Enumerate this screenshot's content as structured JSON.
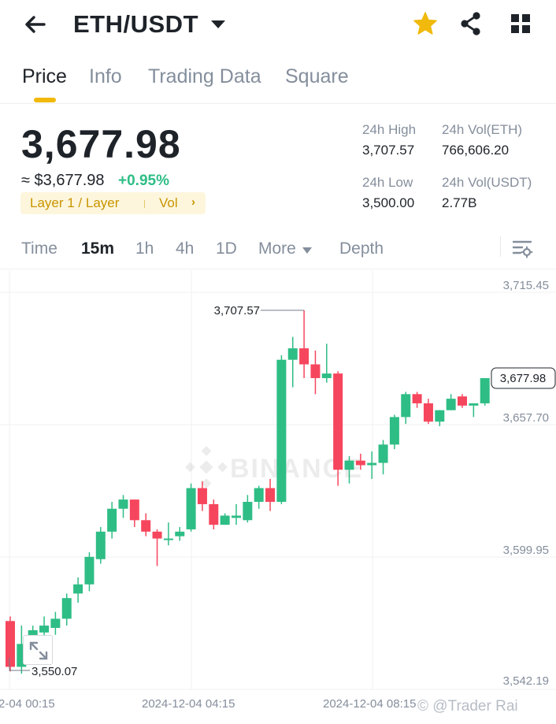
{
  "header": {
    "pair": "ETH/USDT",
    "icons": [
      "back-arrow-icon",
      "chevron-down-icon",
      "star-icon",
      "share-icon",
      "grid-icon"
    ],
    "star_color": "#f0b90b"
  },
  "tabs": [
    {
      "label": "Price",
      "active": true
    },
    {
      "label": "Info",
      "active": false
    },
    {
      "label": "Trading Data",
      "active": false
    },
    {
      "label": "Square",
      "active": false
    }
  ],
  "ticker": {
    "last_price": "3,677.98",
    "fiat_price": "≈ $3,677.98",
    "change_pct": "+0.95%",
    "tags": {
      "category": "Layer 1 / Layer",
      "vol": "Vol",
      "arrow": "›"
    },
    "high_label": "24h High",
    "high_value": "3,707.57",
    "low_label": "24h Low",
    "low_value": "3,500.00",
    "vol_eth_label": "24h Vol(ETH)",
    "vol_eth_value": "766,606.20",
    "vol_usdt_label": "24h Vol(USDT)",
    "vol_usdt_value": "2.77B"
  },
  "intervals": [
    {
      "label": "Time",
      "active": false
    },
    {
      "label": "15m",
      "active": true
    },
    {
      "label": "1h",
      "active": false
    },
    {
      "label": "4h",
      "active": false
    },
    {
      "label": "1D",
      "active": false
    },
    {
      "label": "More",
      "active": false
    },
    {
      "label": "Depth",
      "active": false
    }
  ],
  "chart": {
    "y_labels": [
      "3,715.45",
      "3,657.70",
      "3,599.95",
      "3,542.19"
    ],
    "x_labels": [
      "2-04 00:15",
      "2024-12-04 04:15",
      "2024-12-04 08:15"
    ],
    "high_marker": "3,707.57",
    "low_marker": "3,550.07",
    "last_price_label": "3,677.98",
    "watermark_logo": "BINANCE",
    "up_color": "#2ebd85",
    "down_color": "#f6465d"
  },
  "chart_data": {
    "type": "candlestick",
    "ylim": [
      3542.19,
      3715.45
    ],
    "candles": [
      {
        "o": 3572,
        "h": 3574,
        "c": 3552,
        "l": 3550
      },
      {
        "o": 3552,
        "h": 3570,
        "c": 3562,
        "l": 3549
      },
      {
        "o": 3562,
        "h": 3570,
        "c": 3568,
        "l": 3557
      },
      {
        "o": 3567,
        "h": 3574,
        "c": 3570,
        "l": 3564
      },
      {
        "o": 3569,
        "h": 3576,
        "c": 3573,
        "l": 3566
      },
      {
        "o": 3573,
        "h": 3584,
        "c": 3582,
        "l": 3570
      },
      {
        "o": 3584,
        "h": 3591,
        "c": 3588,
        "l": 3580
      },
      {
        "o": 3588,
        "h": 3602,
        "c": 3600,
        "l": 3585
      },
      {
        "o": 3599,
        "h": 3613,
        "c": 3611,
        "l": 3597
      },
      {
        "o": 3611,
        "h": 3624,
        "c": 3621,
        "l": 3608
      },
      {
        "o": 3621,
        "h": 3627,
        "c": 3625,
        "l": 3617
      },
      {
        "o": 3625,
        "h": 3625,
        "c": 3616,
        "l": 3613
      },
      {
        "o": 3616,
        "h": 3619,
        "c": 3611,
        "l": 3609
      },
      {
        "o": 3611,
        "h": 3612,
        "c": 3608,
        "l": 3596
      },
      {
        "o": 3608,
        "h": 3615,
        "c": 3608,
        "l": 3605
      },
      {
        "o": 3609,
        "h": 3613,
        "c": 3611,
        "l": 3607
      },
      {
        "o": 3612,
        "h": 3632,
        "c": 3630,
        "l": 3611
      },
      {
        "o": 3630,
        "h": 3633,
        "c": 3623,
        "l": 3620
      },
      {
        "o": 3623,
        "h": 3625,
        "c": 3614,
        "l": 3612
      },
      {
        "o": 3614,
        "h": 3619,
        "c": 3618,
        "l": 3614
      },
      {
        "o": 3617,
        "h": 3623,
        "c": 3618,
        "l": 3614
      },
      {
        "o": 3616,
        "h": 3627,
        "c": 3624,
        "l": 3615
      },
      {
        "o": 3624,
        "h": 3631,
        "c": 3630,
        "l": 3621
      },
      {
        "o": 3630,
        "h": 3634,
        "c": 3624,
        "l": 3620
      },
      {
        "o": 3624,
        "h": 3688,
        "c": 3686,
        "l": 3623
      },
      {
        "o": 3686,
        "h": 3696,
        "c": 3691,
        "l": 3674
      },
      {
        "o": 3691,
        "h": 3707.57,
        "c": 3684,
        "l": 3678
      },
      {
        "o": 3684,
        "h": 3690,
        "c": 3678,
        "l": 3671
      },
      {
        "o": 3678,
        "h": 3693,
        "c": 3680,
        "l": 3676
      },
      {
        "o": 3680,
        "h": 3681,
        "c": 3638,
        "l": 3631
      },
      {
        "o": 3638,
        "h": 3644,
        "c": 3642,
        "l": 3632
      },
      {
        "o": 3642,
        "h": 3645,
        "c": 3640,
        "l": 3638
      },
      {
        "o": 3640,
        "h": 3646,
        "c": 3641,
        "l": 3634
      },
      {
        "o": 3641,
        "h": 3651,
        "c": 3649,
        "l": 3636
      },
      {
        "o": 3649,
        "h": 3662,
        "c": 3661,
        "l": 3647
      },
      {
        "o": 3661,
        "h": 3672,
        "c": 3671,
        "l": 3658
      },
      {
        "o": 3671,
        "h": 3672,
        "c": 3667,
        "l": 3665
      },
      {
        "o": 3667,
        "h": 3669,
        "c": 3659,
        "l": 3658
      },
      {
        "o": 3659,
        "h": 3664,
        "c": 3664,
        "l": 3657
      },
      {
        "o": 3664,
        "h": 3671,
        "c": 3669,
        "l": 3664
      },
      {
        "o": 3670,
        "h": 3671,
        "c": 3666,
        "l": 3665
      },
      {
        "o": 3666,
        "h": 3666,
        "c": 3667,
        "l": 3661
      },
      {
        "o": 3667,
        "h": 3677.98,
        "c": 3677.98,
        "l": 3666
      }
    ]
  }
}
